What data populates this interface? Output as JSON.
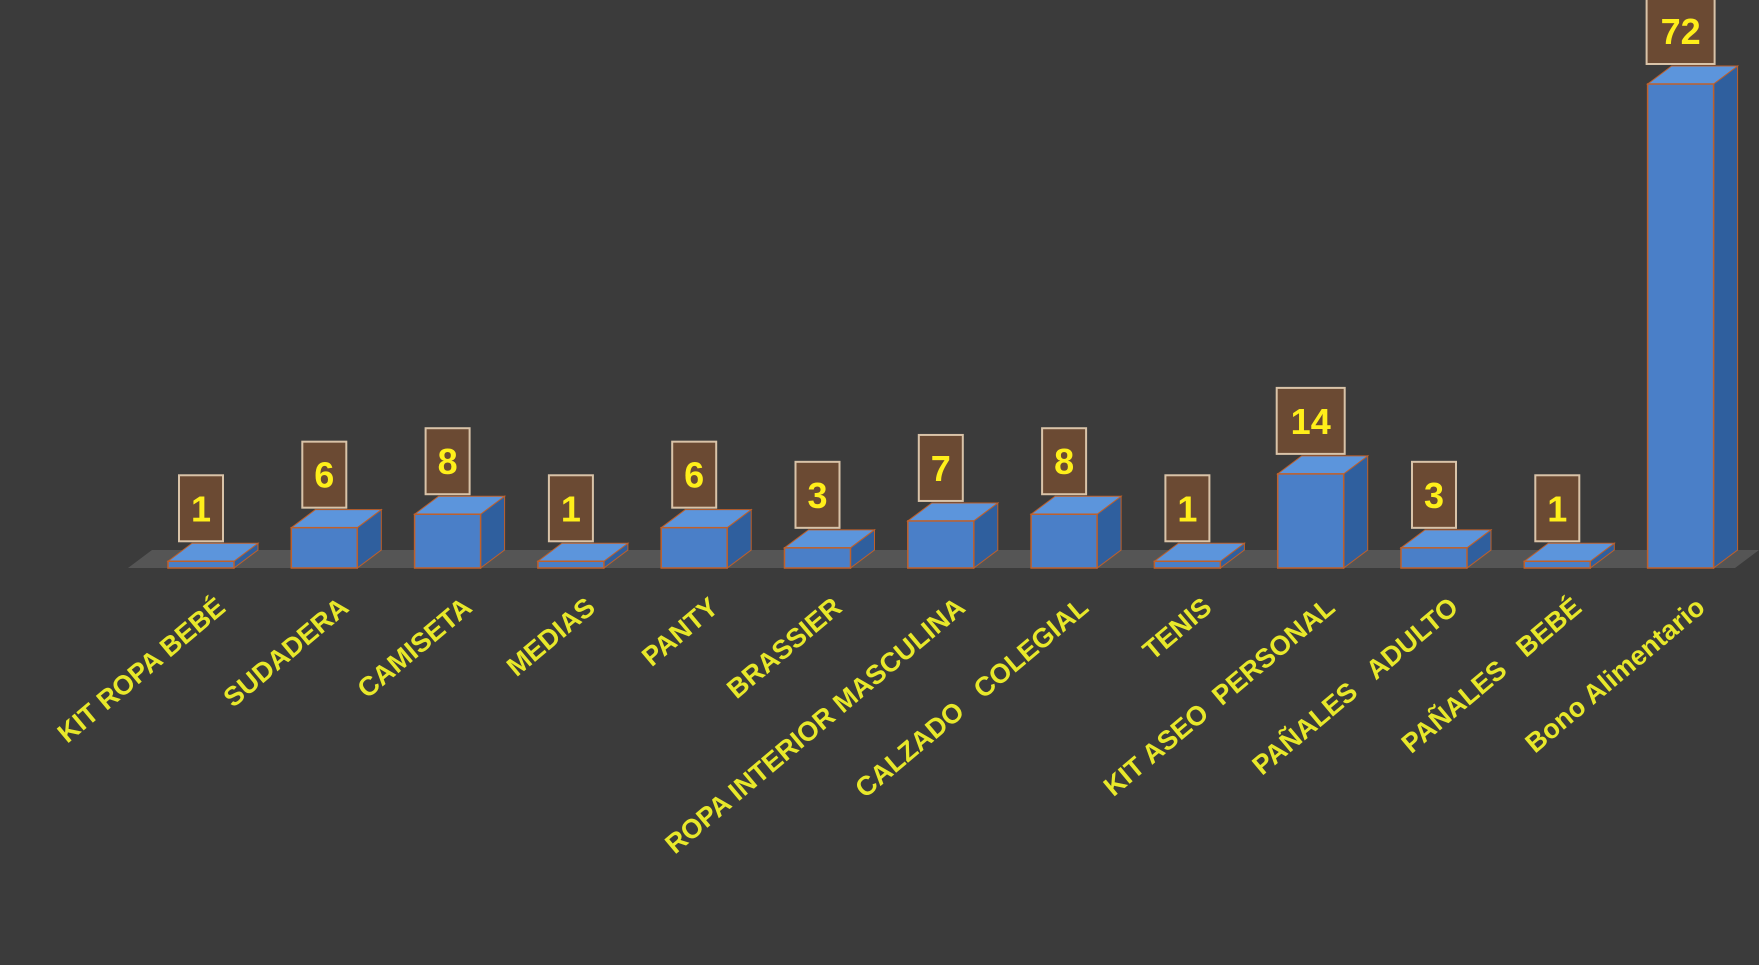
{
  "chart_data": {
    "type": "bar",
    "style": "3d-column",
    "categories": [
      "KIT ROPA BEBÉ",
      "SUDADERA",
      "CAMISETA",
      "MEDIAS",
      "PANTY",
      "BRASSIER",
      "ROPA INTERIOR MASCULINA",
      "CALZADO   COLEGIAL",
      "TENIS",
      "KIT ASEO  PERSONAL",
      "PAÑALES   ADULTO",
      "PAÑALES   BEBÉ",
      "Bono Alimentario"
    ],
    "values": [
      1,
      6,
      8,
      1,
      6,
      3,
      7,
      8,
      1,
      14,
      3,
      1,
      72
    ],
    "data_labels": [
      "1",
      "6",
      "8",
      "1",
      "6",
      "3",
      "7",
      "8",
      "1",
      "14",
      "3",
      "1",
      "72"
    ],
    "ylim": [
      0,
      72
    ],
    "grid": false,
    "legend": "none",
    "colors": {
      "background": "#3b3b3b",
      "bar_front": "#4a7fc8",
      "bar_side": "#2f5f9e",
      "bar_top": "#5c95dc",
      "bar_edge": "#c0602a",
      "floor": "#5a5a5a",
      "label_box": "#6b4a33",
      "label_box_border": "#d9c3a8",
      "label_text": "#ffef1a",
      "category_text": "#e8e82a"
    }
  }
}
